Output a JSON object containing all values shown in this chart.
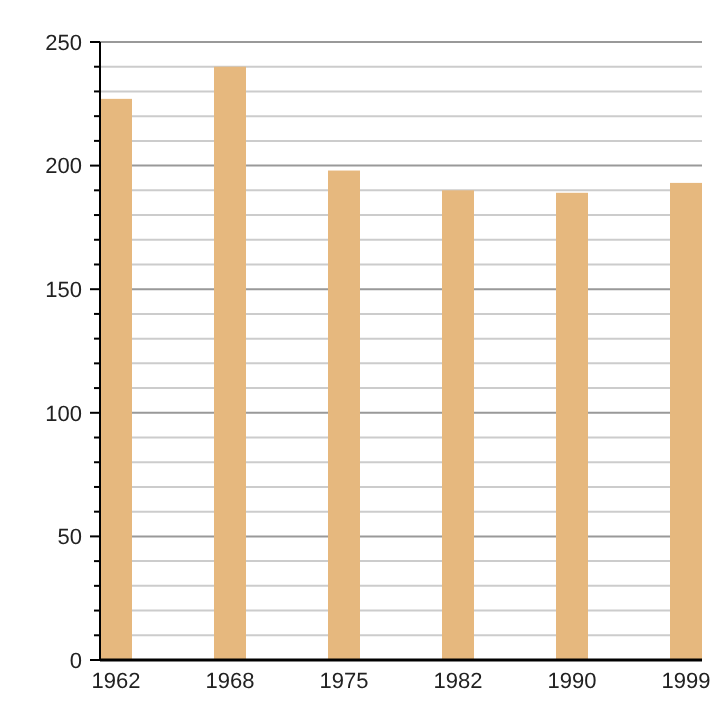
{
  "chart_data": {
    "type": "bar",
    "categories": [
      "1962",
      "1968",
      "1975",
      "1982",
      "1990",
      "1999"
    ],
    "values": [
      227,
      240,
      198,
      190,
      189,
      193
    ],
    "color": "#e6b87e",
    "ylim": [
      0,
      250
    ],
    "yticks": [
      0,
      {
        "value": 10,
        "label": null
      },
      {
        "value": 20,
        "label": null
      },
      {
        "value": 30,
        "label": null
      },
      {
        "value": 40,
        "label": null
      },
      50,
      {
        "value": 60,
        "label": null
      },
      {
        "value": 70,
        "label": null
      },
      {
        "value": 80,
        "label": null
      },
      {
        "value": 90,
        "label": null
      },
      100,
      {
        "value": 110,
        "label": null
      },
      {
        "value": 120,
        "label": null
      },
      {
        "value": 130,
        "label": null
      },
      {
        "value": 140,
        "label": null
      },
      150,
      {
        "value": 160,
        "label": null
      },
      {
        "value": 170,
        "label": null
      },
      {
        "value": 180,
        "label": null
      },
      {
        "value": 190,
        "label": null
      },
      200,
      {
        "value": 210,
        "label": null
      },
      {
        "value": 220,
        "label": null
      },
      {
        "value": 230,
        "label": null
      },
      {
        "value": 240,
        "label": null
      },
      250
    ],
    "grid": "y"
  }
}
